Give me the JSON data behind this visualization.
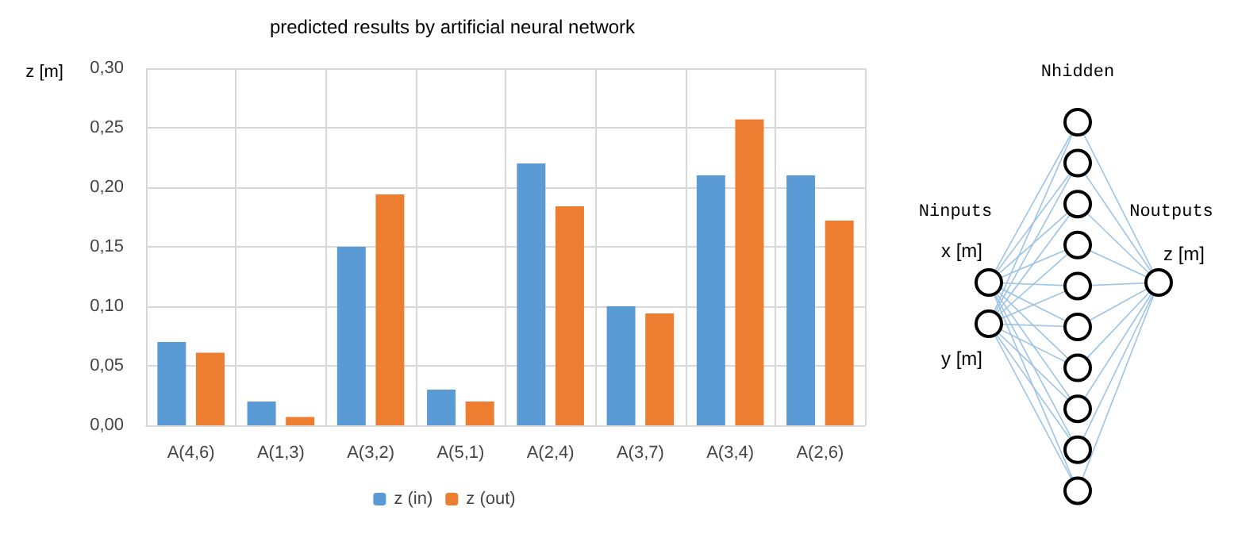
{
  "chart_data": {
    "type": "bar",
    "title": "predicted results by artificial neural network",
    "ylabel": "z [m]",
    "categories": [
      "A(4,6)",
      "A(1,3)",
      "A(3,2)",
      "A(5,1)",
      "A(2,4)",
      "A(3,7)",
      "A(3,4)",
      "A(2,6)"
    ],
    "series": [
      {
        "name": "z (in)",
        "color": "#5b9bd5",
        "values": [
          0.07,
          0.02,
          0.15,
          0.03,
          0.22,
          0.1,
          0.21,
          0.21
        ]
      },
      {
        "name": "z (out)",
        "color": "#ed7d31",
        "values": [
          0.061,
          0.007,
          0.194,
          0.02,
          0.184,
          0.094,
          0.257,
          0.172
        ]
      }
    ],
    "ylim": [
      0,
      0.3
    ],
    "yticks": [
      {
        "value": 0,
        "label": "0,00"
      },
      {
        "value": 0.05,
        "label": "0,05"
      },
      {
        "value": 0.1,
        "label": "0,10"
      },
      {
        "value": 0.15,
        "label": "0,15"
      },
      {
        "value": 0.2,
        "label": "0,20"
      },
      {
        "value": 0.25,
        "label": "0,25"
      },
      {
        "value": 0.3,
        "label": "0,30"
      }
    ],
    "grid": true,
    "legend": "bottom",
    "annotations": [
      "Nhidden",
      "Ninputs",
      "Noutputs",
      "x [m]",
      "y [m]",
      "z [m]"
    ]
  }
}
